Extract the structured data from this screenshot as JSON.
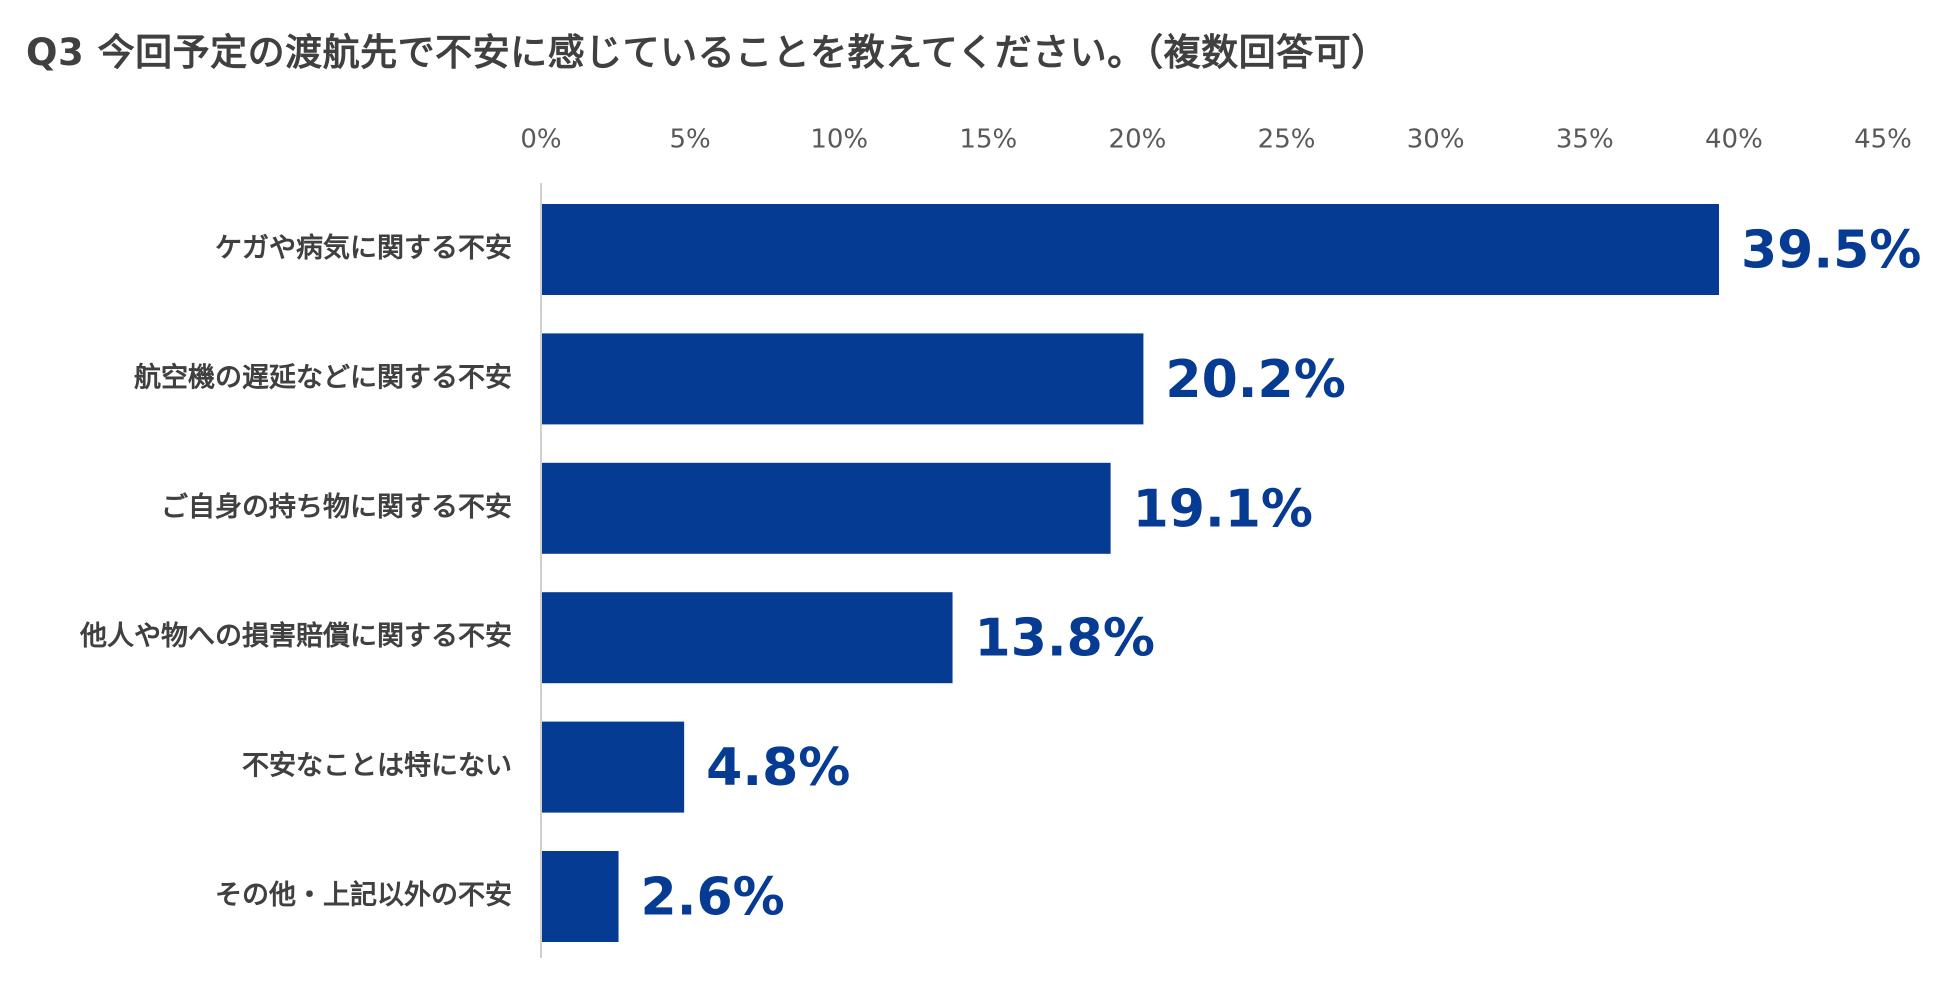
{
  "chart_data": {
    "type": "bar",
    "orientation": "horizontal",
    "title": "Q3 今回予定の渡航先で不安に感じていることを教えてください。（複数回答可）",
    "categories": [
      "ケガや病気に関する不安",
      "航空機の遅延などに関する不安",
      "ご自身の持ち物に関する不安",
      "他人や物への損害賠償に関する不安",
      "不安なことは特にない",
      "その他・上記以外の不安"
    ],
    "values": [
      39.5,
      20.2,
      19.1,
      13.8,
      4.8,
      2.6
    ],
    "value_labels": [
      "39.5%",
      "20.2%",
      "19.1%",
      "13.8%",
      "4.8%",
      "2.6%"
    ],
    "xlim": [
      0,
      45
    ],
    "xticks": [
      0,
      5,
      10,
      15,
      20,
      25,
      30,
      35,
      40,
      45
    ],
    "xtick_labels": [
      "0%",
      "5%",
      "10%",
      "15%",
      "20%",
      "25%",
      "30%",
      "35%",
      "40%",
      "45%"
    ],
    "xaxis_position": "top",
    "grid": false,
    "legend": "none",
    "bar_color": "#063B93",
    "label_color": "#063B93"
  }
}
